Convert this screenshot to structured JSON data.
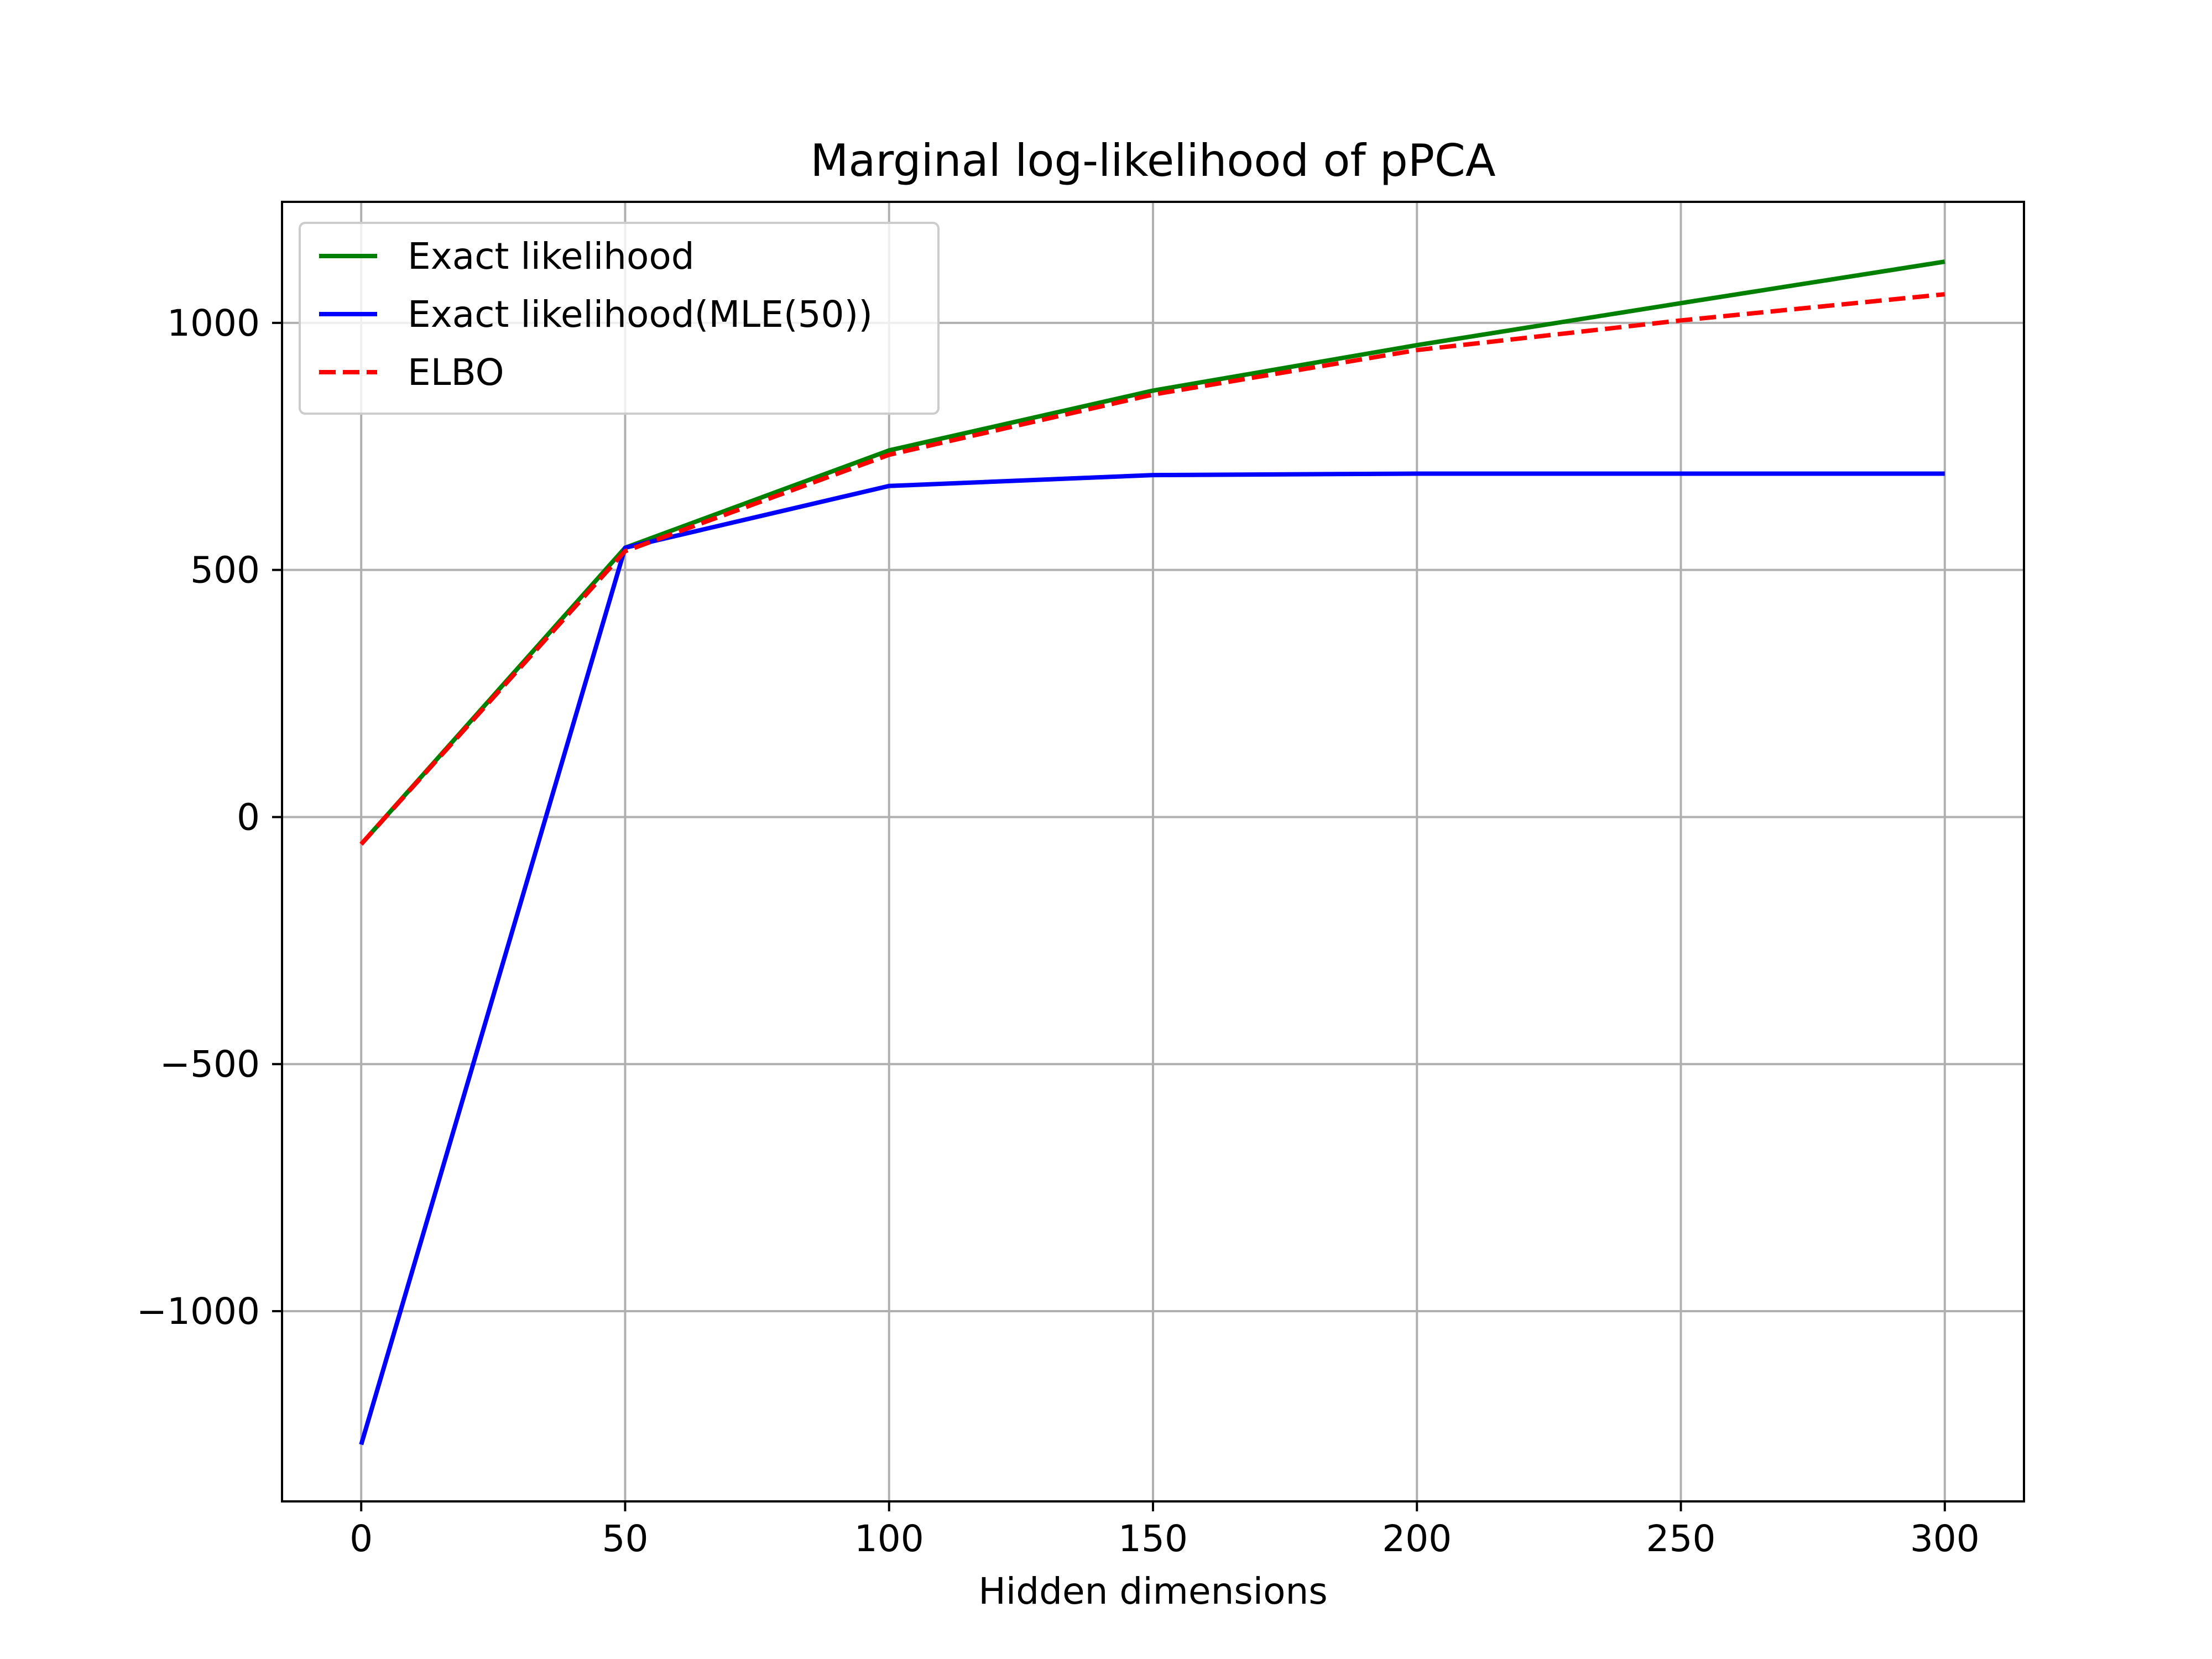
{
  "chart_data": {
    "type": "line",
    "title": "Marginal log-likelihood of pPCA",
    "xlabel": "Hidden dimensions",
    "ylabel": "",
    "x": [
      0,
      50,
      100,
      150,
      200,
      250,
      300
    ],
    "xlim": [
      -15,
      315
    ],
    "ylim": [
      -1385,
      1245
    ],
    "xticks": [
      0,
      50,
      100,
      150,
      200,
      250,
      300
    ],
    "xtick_labels": [
      "0",
      "50",
      "100",
      "150",
      "200",
      "250",
      "300"
    ],
    "yticks": [
      -1000,
      -500,
      0,
      500,
      1000
    ],
    "ytick_labels": [
      "−1000",
      "−500",
      "0",
      "500",
      "1000"
    ],
    "grid": true,
    "legend_position": "top-left",
    "series": [
      {
        "name": "Exact likelihood",
        "color": "#008000",
        "style": "solid",
        "values": [
          -55,
          545,
          742,
          863,
          955,
          1040,
          1124
        ]
      },
      {
        "name": "Exact likelihood(MLE(50))",
        "color": "#0000ff",
        "style": "solid",
        "values": [
          -1270,
          545,
          670,
          692,
          695,
          695,
          695
        ]
      },
      {
        "name": "ELBO",
        "color": "#ff0000",
        "style": "dashed",
        "values": [
          -55,
          538,
          733,
          855,
          945,
          1005,
          1058
        ]
      }
    ]
  }
}
